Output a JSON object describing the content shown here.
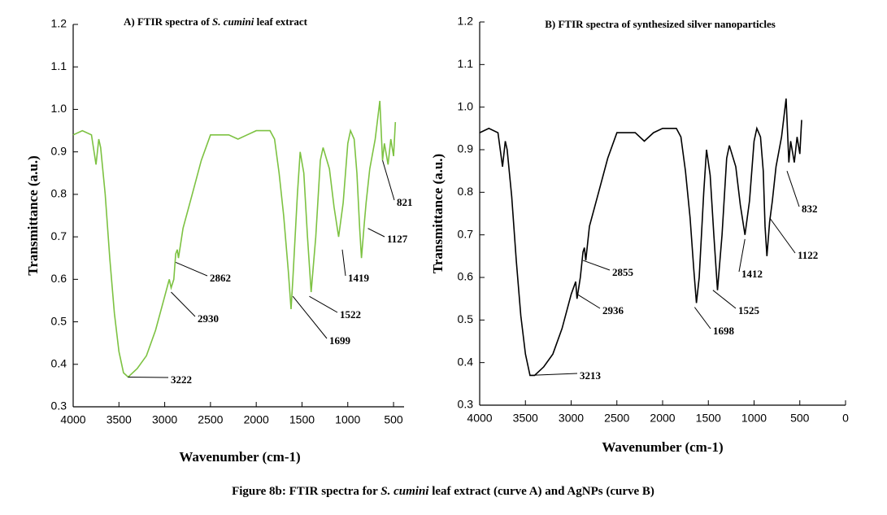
{
  "caption": [
    "Figure 8b: FTIR spectra for ",
    "S. cumini",
    " leaf extract (curve A) and AgNPs (curve B)"
  ],
  "chart_data": [
    {
      "type": "line",
      "title": [
        "A) FTIR spectra of ",
        "S. cumini",
        " leaf extract"
      ],
      "x_label": "Wavenumber (cm-1)",
      "y_label": "Transmittance (a.u.)",
      "xlim": [
        4000,
        385
      ],
      "ylim": [
        0.3,
        1.2
      ],
      "xticks": [
        4000,
        3500,
        3000,
        2500,
        2000,
        1500,
        1000,
        500
      ],
      "yticks": [
        0.3,
        0.4,
        0.5,
        0.6,
        0.7,
        0.8,
        0.9,
        {
          "value": 1.0,
          "label": "1.0"
        },
        1.1,
        1.2
      ],
      "series": [
        {
          "name": "A",
          "color": "#7dc242",
          "x": [
            4000,
            3900,
            3800,
            3750,
            3720,
            3700,
            3650,
            3600,
            3550,
            3500,
            3450,
            3400,
            3300,
            3200,
            3100,
            3000,
            2950,
            2930,
            2900,
            2880,
            2862,
            2850,
            2800,
            2700,
            2600,
            2500,
            2300,
            2200,
            2100,
            2000,
            1850,
            1800,
            1750,
            1700,
            1650,
            1620,
            1600,
            1550,
            1520,
            1480,
            1440,
            1400,
            1350,
            1300,
            1270,
            1200,
            1150,
            1100,
            1050,
            1000,
            970,
            930,
            900,
            870,
            850,
            820,
            800,
            760,
            700,
            650,
            620,
            600,
            560,
            530,
            500,
            480
          ],
          "values": [
            0.94,
            0.95,
            0.94,
            0.87,
            0.93,
            0.91,
            0.8,
            0.65,
            0.52,
            0.43,
            0.38,
            0.37,
            0.39,
            0.42,
            0.48,
            0.56,
            0.6,
            0.58,
            0.6,
            0.66,
            0.67,
            0.65,
            0.72,
            0.8,
            0.88,
            0.94,
            0.94,
            0.93,
            0.94,
            0.95,
            0.95,
            0.93,
            0.85,
            0.75,
            0.62,
            0.53,
            0.6,
            0.8,
            0.9,
            0.85,
            0.7,
            0.57,
            0.7,
            0.88,
            0.91,
            0.86,
            0.77,
            0.7,
            0.78,
            0.92,
            0.95,
            0.93,
            0.85,
            0.72,
            0.65,
            0.73,
            0.78,
            0.86,
            0.93,
            1.02,
            0.88,
            0.92,
            0.87,
            0.93,
            0.89,
            0.97
          ]
        }
      ],
      "annotations": [
        {
          "label": "3222",
          "x": 3400,
          "y": 0.37
        },
        {
          "label": "2930",
          "x": 2930,
          "y": 0.57
        },
        {
          "label": "2862",
          "x": 2880,
          "y": 0.64
        },
        {
          "label": "1699",
          "x": 1600,
          "y": 0.56
        },
        {
          "label": "1522",
          "x": 1420,
          "y": 0.56
        },
        {
          "label": "1419",
          "x": 1060,
          "y": 0.67
        },
        {
          "label": "1127",
          "x": 780,
          "y": 0.72
        },
        {
          "label": "821",
          "x": 620,
          "y": 0.88
        }
      ]
    },
    {
      "type": "line",
      "title": [
        "B) FTIR spectra of synthesized silver nanoparticles"
      ],
      "x_label": "Wavenumber (cm-1)",
      "y_label": "Transmittance (a.u.)",
      "xlim": [
        4000,
        0
      ],
      "ylim": [
        0.3,
        1.2
      ],
      "xticks": [
        4000,
        3500,
        3000,
        2500,
        2000,
        1500,
        1000,
        500,
        0
      ],
      "yticks": [
        0.3,
        0.4,
        0.5,
        0.6,
        0.7,
        0.8,
        0.9,
        {
          "value": 1.0,
          "label": "1.0"
        },
        1.1,
        1.2
      ],
      "series": [
        {
          "name": "B",
          "color": "#000000",
          "x": [
            4000,
            3900,
            3800,
            3750,
            3720,
            3700,
            3650,
            3600,
            3550,
            3500,
            3450,
            3400,
            3300,
            3200,
            3100,
            3000,
            2950,
            2936,
            2900,
            2870,
            2855,
            2840,
            2800,
            2700,
            2600,
            2500,
            2300,
            2200,
            2100,
            2000,
            1850,
            1800,
            1750,
            1700,
            1660,
            1630,
            1600,
            1550,
            1520,
            1480,
            1440,
            1400,
            1350,
            1300,
            1270,
            1200,
            1150,
            1100,
            1050,
            1000,
            970,
            930,
            900,
            880,
            860,
            830,
            800,
            760,
            700,
            650,
            620,
            600,
            560,
            530,
            500,
            480
          ],
          "values": [
            0.94,
            0.95,
            0.94,
            0.86,
            0.92,
            0.9,
            0.79,
            0.64,
            0.51,
            0.42,
            0.37,
            0.37,
            0.39,
            0.42,
            0.48,
            0.56,
            0.59,
            0.55,
            0.6,
            0.66,
            0.67,
            0.64,
            0.72,
            0.8,
            0.88,
            0.94,
            0.94,
            0.92,
            0.94,
            0.95,
            0.95,
            0.93,
            0.85,
            0.74,
            0.62,
            0.54,
            0.6,
            0.8,
            0.9,
            0.84,
            0.7,
            0.57,
            0.7,
            0.88,
            0.91,
            0.86,
            0.77,
            0.7,
            0.78,
            0.92,
            0.95,
            0.93,
            0.85,
            0.72,
            0.65,
            0.73,
            0.78,
            0.86,
            0.93,
            1.02,
            0.87,
            0.92,
            0.87,
            0.93,
            0.89,
            0.97
          ]
        }
      ],
      "annotations": [
        {
          "label": "3213",
          "x": 3450,
          "y": 0.37
        },
        {
          "label": "2936",
          "x": 2930,
          "y": 0.56
        },
        {
          "label": "2855",
          "x": 2870,
          "y": 0.64
        },
        {
          "label": "1698",
          "x": 1650,
          "y": 0.53
        },
        {
          "label": "1525",
          "x": 1450,
          "y": 0.57
        },
        {
          "label": "1412",
          "x": 1100,
          "y": 0.69
        },
        {
          "label": "1122",
          "x": 830,
          "y": 0.74
        },
        {
          "label": "832",
          "x": 640,
          "y": 0.85
        }
      ]
    }
  ]
}
